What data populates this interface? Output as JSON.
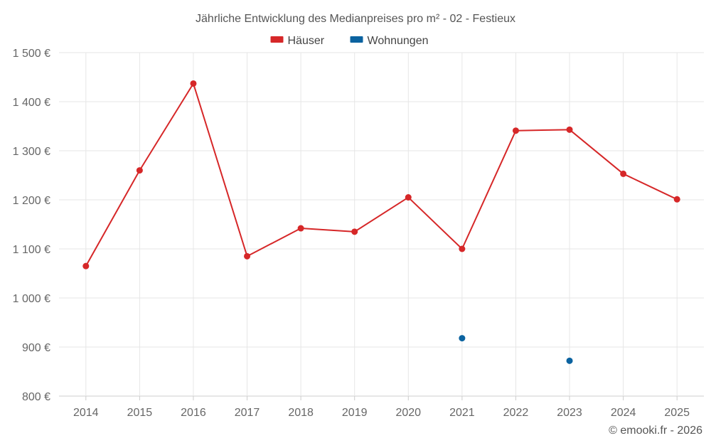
{
  "chart_data": {
    "type": "line",
    "title": "Jährliche Entwicklung des Medianpreises pro m² - 02 - Festieux",
    "categories": [
      "2014",
      "2015",
      "2016",
      "2017",
      "2018",
      "2019",
      "2020",
      "2021",
      "2022",
      "2023",
      "2024",
      "2025"
    ],
    "series": [
      {
        "name": "Häuser",
        "color": "#d62728",
        "values": [
          1065,
          1260,
          1437,
          1085,
          1142,
          1135,
          1205,
          1100,
          1341,
          1343,
          1253,
          1201
        ]
      },
      {
        "name": "Wohnungen",
        "color": "#0b63a0",
        "values": [
          null,
          null,
          null,
          null,
          null,
          null,
          null,
          918,
          null,
          872,
          null,
          null
        ]
      }
    ],
    "ylim": [
      800,
      1500
    ],
    "yticks": [
      800,
      900,
      1000,
      1100,
      1200,
      1300,
      1400,
      1500
    ],
    "ytick_labels": [
      "800 €",
      "900 €",
      "1 000 €",
      "1 100 €",
      "1 200 €",
      "1 300 €",
      "1 400 €",
      "1 500 €"
    ],
    "grid": true,
    "legend_position": "top-center",
    "xlabel": "",
    "ylabel": ""
  },
  "credit": "© emooki.fr - 2026"
}
